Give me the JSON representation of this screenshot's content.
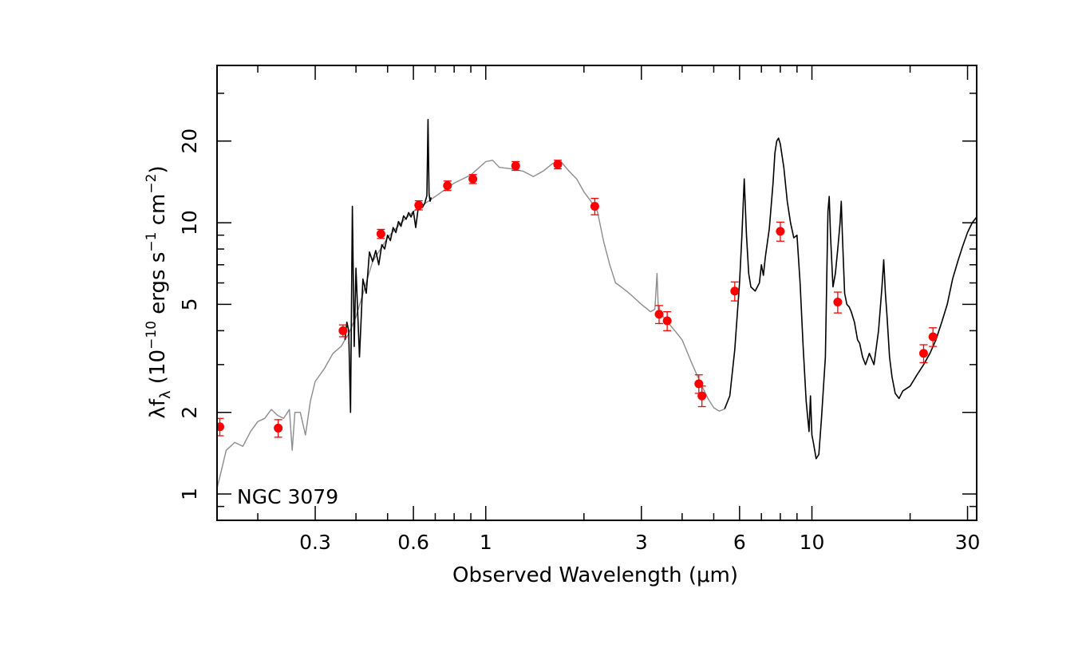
{
  "chart_data": {
    "type": "line",
    "xlabel": "Observed Wavelength (μm)",
    "ylabel": "λfλ (10⁻¹⁰ ergs s⁻¹ cm⁻²)",
    "ylabel_parts": {
      "lambda": "λ",
      "f": "f",
      "sub": "λ",
      "open": " (10",
      "exp1": "−10",
      "mid1": " ergs s",
      "exp2": "−1",
      "mid2": " cm",
      "exp3": "−2",
      "close": ")"
    },
    "annotation": "NGC 3079",
    "x_scale": "log",
    "y_scale": "log",
    "xlim": [
      0.15,
      32
    ],
    "ylim": [
      0.8,
      38
    ],
    "x_tick_labels": [
      "0.3",
      "0.6",
      "1",
      "3",
      "6",
      "10",
      "30"
    ],
    "x_tick_values": [
      0.3,
      0.6,
      1,
      3,
      6,
      10,
      30
    ],
    "y_tick_labels": [
      "1",
      "2",
      "5",
      "10",
      "20"
    ],
    "y_tick_values": [
      1,
      2,
      5,
      10,
      20
    ],
    "grid": false,
    "series": [
      {
        "style": "model",
        "color": "#8c8c8c",
        "points": [
          [
            0.15,
            1.05
          ],
          [
            0.16,
            1.45
          ],
          [
            0.17,
            1.55
          ],
          [
            0.18,
            1.5
          ],
          [
            0.19,
            1.7
          ],
          [
            0.2,
            1.85
          ],
          [
            0.21,
            1.9
          ],
          [
            0.22,
            2.05
          ],
          [
            0.23,
            1.95
          ],
          [
            0.24,
            1.9
          ],
          [
            0.25,
            2.05
          ],
          [
            0.255,
            1.45
          ],
          [
            0.26,
            2.0
          ],
          [
            0.27,
            2.0
          ],
          [
            0.28,
            1.65
          ],
          [
            0.29,
            2.2
          ],
          [
            0.3,
            2.6
          ],
          [
            0.32,
            2.9
          ],
          [
            0.34,
            3.3
          ],
          [
            0.36,
            3.5
          ],
          [
            0.38,
            3.9
          ],
          [
            0.4,
            4.5
          ],
          [
            0.45,
            7.2
          ],
          [
            0.5,
            8.8
          ],
          [
            0.55,
            10.0
          ],
          [
            0.6,
            11.0
          ],
          [
            0.7,
            12.5
          ],
          [
            0.8,
            14.0
          ],
          [
            0.9,
            15.0
          ],
          [
            1.0,
            16.8
          ],
          [
            1.05,
            17.0
          ],
          [
            1.1,
            16.0
          ],
          [
            1.2,
            15.8
          ],
          [
            1.3,
            15.5
          ],
          [
            1.4,
            14.8
          ],
          [
            1.5,
            15.5
          ],
          [
            1.6,
            16.5
          ],
          [
            1.7,
            16.8
          ],
          [
            1.8,
            15.5
          ],
          [
            1.9,
            14.5
          ],
          [
            2.0,
            13.0
          ],
          [
            2.1,
            12.0
          ],
          [
            2.2,
            11.0
          ],
          [
            2.3,
            8.5
          ],
          [
            2.4,
            7.0
          ],
          [
            2.5,
            6.0
          ],
          [
            2.6,
            5.8
          ],
          [
            2.7,
            5.6
          ],
          [
            2.8,
            5.4
          ],
          [
            3.0,
            5.0
          ],
          [
            3.2,
            4.7
          ],
          [
            3.3,
            4.8
          ],
          [
            3.35,
            6.5
          ],
          [
            3.38,
            4.8
          ],
          [
            3.5,
            4.5
          ],
          [
            3.8,
            4.0
          ],
          [
            4.0,
            3.7
          ],
          [
            4.3,
            3.0
          ],
          [
            4.6,
            2.5
          ],
          [
            4.8,
            2.25
          ],
          [
            5.0,
            2.08
          ],
          [
            5.2,
            2.02
          ],
          [
            5.4,
            2.06
          ]
        ]
      },
      {
        "style": "optical",
        "color": "#000000",
        "points": [
          [
            0.37,
            3.7
          ],
          [
            0.375,
            4.3
          ],
          [
            0.38,
            4.0
          ],
          [
            0.385,
            2.0
          ],
          [
            0.39,
            11.5
          ],
          [
            0.395,
            3.5
          ],
          [
            0.4,
            6.8
          ],
          [
            0.41,
            3.2
          ],
          [
            0.42,
            6.2
          ],
          [
            0.43,
            5.5
          ],
          [
            0.44,
            7.8
          ],
          [
            0.45,
            7.2
          ],
          [
            0.46,
            7.9
          ],
          [
            0.47,
            7.0
          ],
          [
            0.48,
            8.3
          ],
          [
            0.49,
            8.0
          ],
          [
            0.5,
            9.0
          ],
          [
            0.51,
            8.6
          ],
          [
            0.52,
            9.6
          ],
          [
            0.53,
            9.2
          ],
          [
            0.54,
            10.1
          ],
          [
            0.55,
            9.7
          ],
          [
            0.56,
            10.6
          ],
          [
            0.57,
            10.3
          ],
          [
            0.58,
            10.9
          ],
          [
            0.59,
            10.5
          ],
          [
            0.6,
            11.0
          ],
          [
            0.61,
            9.6
          ],
          [
            0.62,
            11.2
          ],
          [
            0.63,
            11.6
          ],
          [
            0.64,
            11.4
          ],
          [
            0.65,
            11.8
          ],
          [
            0.66,
            12.6
          ],
          [
            0.665,
            24.0
          ],
          [
            0.67,
            12.8
          ],
          [
            0.675,
            12.0
          ],
          [
            0.68,
            12.4
          ]
        ]
      },
      {
        "style": "ir",
        "color": "#000000",
        "points": [
          [
            5.4,
            2.06
          ],
          [
            5.6,
            2.3
          ],
          [
            5.8,
            3.4
          ],
          [
            6.0,
            6.0
          ],
          [
            6.1,
            9.0
          ],
          [
            6.2,
            14.5
          ],
          [
            6.3,
            9.0
          ],
          [
            6.4,
            6.5
          ],
          [
            6.5,
            5.8
          ],
          [
            6.7,
            5.6
          ],
          [
            6.9,
            6.0
          ],
          [
            7.0,
            7.0
          ],
          [
            7.1,
            6.4
          ],
          [
            7.2,
            7.5
          ],
          [
            7.4,
            9.5
          ],
          [
            7.6,
            14.0
          ],
          [
            7.7,
            18.0
          ],
          [
            7.8,
            20.0
          ],
          [
            7.9,
            20.5
          ],
          [
            8.0,
            19.5
          ],
          [
            8.2,
            16.0
          ],
          [
            8.4,
            12.0
          ],
          [
            8.6,
            10.0
          ],
          [
            8.8,
            8.8
          ],
          [
            9.0,
            9.0
          ],
          [
            9.2,
            6.0
          ],
          [
            9.4,
            3.5
          ],
          [
            9.6,
            2.2
          ],
          [
            9.8,
            1.7
          ],
          [
            9.9,
            2.3
          ],
          [
            10.0,
            1.65
          ],
          [
            10.1,
            1.55
          ],
          [
            10.3,
            1.35
          ],
          [
            10.5,
            1.4
          ],
          [
            10.7,
            1.9
          ],
          [
            11.0,
            3.2
          ],
          [
            11.1,
            6.0
          ],
          [
            11.2,
            11.0
          ],
          [
            11.3,
            12.5
          ],
          [
            11.4,
            9.0
          ],
          [
            11.6,
            5.8
          ],
          [
            11.8,
            6.5
          ],
          [
            12.0,
            8.0
          ],
          [
            12.2,
            10.0
          ],
          [
            12.3,
            12.0
          ],
          [
            12.4,
            9.0
          ],
          [
            12.6,
            5.5
          ],
          [
            12.8,
            5.0
          ],
          [
            13.0,
            4.9
          ],
          [
            13.2,
            4.7
          ],
          [
            13.5,
            4.3
          ],
          [
            13.8,
            3.7
          ],
          [
            14.0,
            3.6
          ],
          [
            14.3,
            3.2
          ],
          [
            14.6,
            3.0
          ],
          [
            15.0,
            3.3
          ],
          [
            15.5,
            3.0
          ],
          [
            16.0,
            4.0
          ],
          [
            16.4,
            5.8
          ],
          [
            16.6,
            7.3
          ],
          [
            16.8,
            5.5
          ],
          [
            17.0,
            4.5
          ],
          [
            17.3,
            3.2
          ],
          [
            17.6,
            2.7
          ],
          [
            18.0,
            2.35
          ],
          [
            18.5,
            2.25
          ],
          [
            19.0,
            2.4
          ],
          [
            19.5,
            2.45
          ],
          [
            20.0,
            2.5
          ],
          [
            21.0,
            2.75
          ],
          [
            22.0,
            3.0
          ],
          [
            23.0,
            3.3
          ],
          [
            24.0,
            3.7
          ],
          [
            25.0,
            4.3
          ],
          [
            26.0,
            5.0
          ],
          [
            27.0,
            6.2
          ],
          [
            28.0,
            7.2
          ],
          [
            29.0,
            8.2
          ],
          [
            30.0,
            9.2
          ],
          [
            31.0,
            10.0
          ],
          [
            32.0,
            10.5
          ]
        ]
      },
      {
        "style": "photometry",
        "color": "#ff0000",
        "points": [
          {
            "x": 0.153,
            "y": 1.77,
            "err": 0.13
          },
          {
            "x": 0.231,
            "y": 1.75,
            "err": 0.13
          },
          {
            "x": 0.365,
            "y": 4.0,
            "err": 0.2
          },
          {
            "x": 0.477,
            "y": 9.1,
            "err": 0.35
          },
          {
            "x": 0.623,
            "y": 11.6,
            "err": 0.45
          },
          {
            "x": 0.763,
            "y": 13.7,
            "err": 0.55
          },
          {
            "x": 0.913,
            "y": 14.5,
            "err": 0.55
          },
          {
            "x": 1.235,
            "y": 16.2,
            "err": 0.6
          },
          {
            "x": 1.662,
            "y": 16.4,
            "err": 0.6
          },
          {
            "x": 2.159,
            "y": 11.5,
            "err": 0.8
          },
          {
            "x": 3.4,
            "y": 4.6,
            "err": 0.35
          },
          {
            "x": 3.6,
            "y": 4.35,
            "err": 0.35
          },
          {
            "x": 4.5,
            "y": 2.55,
            "err": 0.2
          },
          {
            "x": 4.6,
            "y": 2.3,
            "err": 0.2
          },
          {
            "x": 5.8,
            "y": 5.6,
            "err": 0.45
          },
          {
            "x": 8.0,
            "y": 9.3,
            "err": 0.75
          },
          {
            "x": 12.0,
            "y": 5.1,
            "err": 0.45
          },
          {
            "x": 22.0,
            "y": 3.3,
            "err": 0.25
          },
          {
            "x": 23.5,
            "y": 3.8,
            "err": 0.3
          }
        ]
      }
    ]
  }
}
